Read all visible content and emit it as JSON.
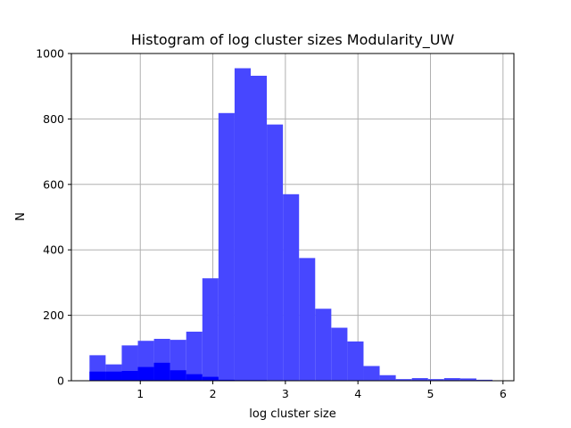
{
  "chart_data": {
    "type": "bar",
    "title": "Histogram of log cluster sizes Modularity_UW",
    "xlabel": "log cluster size",
    "ylabel": "N",
    "xlim": [
      0.05,
      6.15
    ],
    "ylim": [
      0,
      1000
    ],
    "xticks": [
      1,
      2,
      3,
      4,
      5,
      6
    ],
    "yticks": [
      0,
      200,
      400,
      600,
      800,
      1000
    ],
    "grid": true,
    "bin_width": 0.2222,
    "bins_start": 0.3,
    "series": [
      {
        "color": "#4747ff",
        "values": [
          78,
          50,
          108,
          122,
          128,
          125,
          150,
          313,
          818,
          955,
          932,
          783,
          570,
          375,
          220,
          162,
          120,
          45,
          17,
          5,
          8,
          5,
          8,
          7,
          3
        ]
      },
      {
        "color": "#0000ff",
        "values": [
          28,
          28,
          30,
          42,
          55,
          32,
          20,
          12,
          3,
          2,
          2,
          1,
          1,
          0,
          0,
          0,
          0,
          0,
          0,
          0,
          0,
          0,
          0,
          0,
          0
        ]
      }
    ]
  }
}
